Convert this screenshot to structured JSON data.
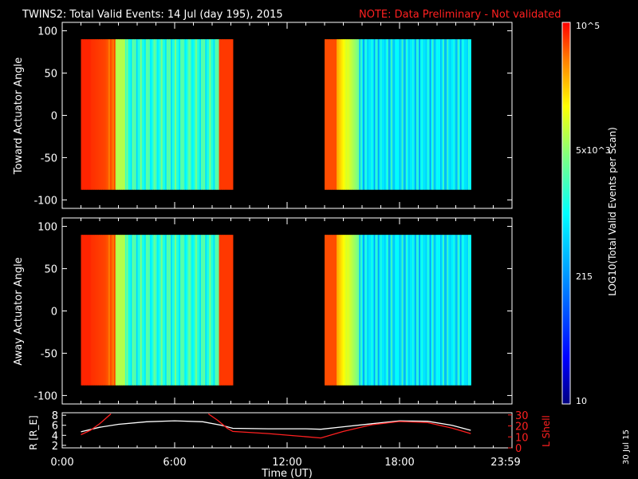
{
  "title": "TWINS2: Total Valid Events: 14 Jul (day 195), 2015",
  "note": "NOTE: Data Preliminary - Not validated",
  "stamp": "30 Jul 15",
  "colors": {
    "background": "#000000",
    "axis": "#ffffff",
    "note": "#ff2020",
    "r_line": "#ffffff",
    "lshell_line": "#ff2020"
  },
  "chart_data": [
    {
      "type": "heatmap",
      "ylabel": "Toward Actuator Angle",
      "yticks": [
        "100",
        "50",
        "0",
        "-50",
        "-100"
      ],
      "ylim": [
        -110,
        110
      ],
      "xlim": [
        0,
        24
      ],
      "data_segments": [
        {
          "start_h": 1.0,
          "end_h": 9.1
        },
        {
          "start_h": 14.0,
          "end_h": 21.8
        }
      ],
      "angle_range": [
        -88,
        90
      ]
    },
    {
      "type": "heatmap",
      "ylabel": "Away Actuator Angle",
      "yticks": [
        "100",
        "50",
        "0",
        "-50",
        "-100"
      ],
      "ylim": [
        -110,
        110
      ],
      "xlim": [
        0,
        24
      ],
      "data_segments": [
        {
          "start_h": 1.0,
          "end_h": 9.1
        },
        {
          "start_h": 14.0,
          "end_h": 21.8
        }
      ],
      "angle_range": [
        -88,
        90
      ]
    },
    {
      "type": "line",
      "xlabel": "Time (UT)",
      "xticks": [
        "0:00",
        "6:00",
        "12:00",
        "18:00",
        "23:59"
      ],
      "xlim": [
        0,
        24
      ],
      "ylabel_left": "R [R_E]",
      "ylabel_right": "L Shell",
      "left_ticks": [
        "8",
        "6",
        "4",
        "2"
      ],
      "right_ticks": [
        "30",
        "20",
        "10",
        "0"
      ],
      "ylim_left": [
        1.5,
        8.5
      ],
      "ylim_right": [
        0,
        32
      ],
      "series": [
        {
          "x": [
            1.0,
            2.0,
            3.0,
            4.5,
            6.0,
            7.5,
            8.5,
            9.1,
            11.0,
            13.0,
            13.8,
            15.0,
            16.5,
            18.0,
            19.5,
            20.8,
            21.8
          ],
          "values": [
            4.7,
            5.6,
            6.2,
            6.7,
            6.9,
            6.7,
            6.0,
            5.4,
            5.3,
            5.3,
            5.2,
            5.7,
            6.3,
            6.9,
            6.8,
            6.0,
            5.0
          ]
        },
        {
          "x": [
            1.0,
            1.5,
            2.0,
            2.6,
            7.8,
            8.3,
            8.8,
            9.1,
            11.0,
            13.8,
            15.0,
            16.5,
            18.0,
            19.5,
            20.8,
            21.8
          ],
          "values": [
            12,
            16,
            22,
            31,
            31,
            25,
            18,
            15,
            13,
            9,
            15,
            21,
            24,
            23,
            18,
            13
          ]
        }
      ]
    }
  ],
  "colorbar": {
    "label": "LOG10(Total Valid Events per Scan)",
    "ticks": [
      "10^5",
      "5x10^3",
      "215",
      "10"
    ]
  }
}
